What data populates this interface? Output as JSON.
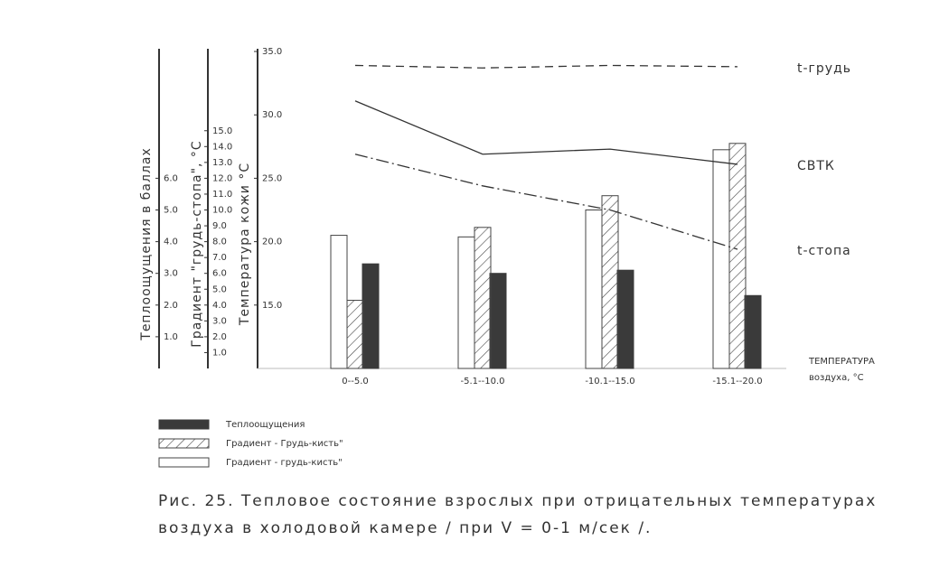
{
  "chart_data": {
    "type": "bar",
    "categories": [
      "0--5.0",
      "-5.1--10.0",
      "-10.1--15.0",
      "-15.1--20.0"
    ],
    "x_label": [
      "ТЕМПЕРАТУРА",
      "воздуха, °С"
    ],
    "y_label": "Теплоощущения в баллах",
    "y2_label": "Градиент \"грудь-стопа\", °С",
    "y3_label": "Температура кожи °С",
    "ylim": [
      0,
      10
    ],
    "yticks": [
      {
        "value": 1,
        "label": "1.0"
      },
      {
        "value": 2,
        "label": "2.0"
      },
      {
        "value": 3,
        "label": "3.0"
      },
      {
        "value": 4,
        "label": "4.0"
      },
      {
        "value": 5,
        "label": "5.0"
      },
      {
        "value": 6,
        "label": "6.0"
      }
    ],
    "y2lim": [
      0,
      20
    ],
    "y2ticks": [
      {
        "value": 1,
        "label": "1.0"
      },
      {
        "value": 2,
        "label": "2.0"
      },
      {
        "value": 3,
        "label": "3.0"
      },
      {
        "value": 4,
        "label": "4.0"
      },
      {
        "value": 5,
        "label": "5.0"
      },
      {
        "value": 6,
        "label": "6.0"
      },
      {
        "value": 7,
        "label": "7.0"
      },
      {
        "value": 8,
        "label": "8.0"
      },
      {
        "value": 9,
        "label": "9.0"
      },
      {
        "value": 10,
        "label": "10.0"
      },
      {
        "value": 11,
        "label": "11.0"
      },
      {
        "value": 12,
        "label": "12.0"
      },
      {
        "value": 13,
        "label": "13.0"
      },
      {
        "value": 14,
        "label": "14.0"
      },
      {
        "value": 15,
        "label": "15.0"
      }
    ],
    "y3lim": [
      10,
      35
    ],
    "y3ticks": [
      {
        "value": 15,
        "label": "15.0"
      },
      {
        "value": 20,
        "label": "20.0"
      },
      {
        "value": 25,
        "label": "25.0"
      },
      {
        "value": 30,
        "label": "30.0"
      },
      {
        "value": 35,
        "label": "35.0"
      }
    ],
    "series": [
      {
        "name": "Теплоощущения",
        "type": "bar",
        "pattern": "solid",
        "color": "#3a3a3a",
        "axis": "y",
        "values": [
          3.3,
          3.0,
          3.1,
          2.3
        ]
      },
      {
        "name": "Градиент - Грудь-кисть\"",
        "type": "bar",
        "pattern": "hatch",
        "color": "#444444",
        "axis": "y2",
        "values": [
          4.3,
          8.9,
          10.9,
          14.2
        ]
      },
      {
        "name": "Градиент - грудь-кисть\"",
        "type": "bar",
        "pattern": "empty",
        "color": "#444444",
        "axis": "y2",
        "values": [
          8.4,
          8.3,
          10.0,
          13.8
        ]
      },
      {
        "name": "t-грудь",
        "type": "line",
        "dash": "9 6",
        "color": "#333333",
        "axis": "y3",
        "values": [
          33.9,
          33.7,
          33.9,
          33.8
        ]
      },
      {
        "name": "СВТК",
        "type": "line",
        "dash": "none",
        "color": "#333333",
        "axis": "y3",
        "values": [
          31.1,
          26.9,
          27.3,
          26.1
        ]
      },
      {
        "name": "t-стопа",
        "type": "line",
        "dash": "14 4 2 4",
        "color": "#333333",
        "axis": "y3",
        "values": [
          26.9,
          24.4,
          22.5,
          19.4
        ]
      }
    ],
    "caption": [
      "Рис. 25. Тепловое состояние взрослых при отрицательных температурах",
      "воздуха в холодовой камере / при V = 0-1 м/сек /."
    ]
  }
}
